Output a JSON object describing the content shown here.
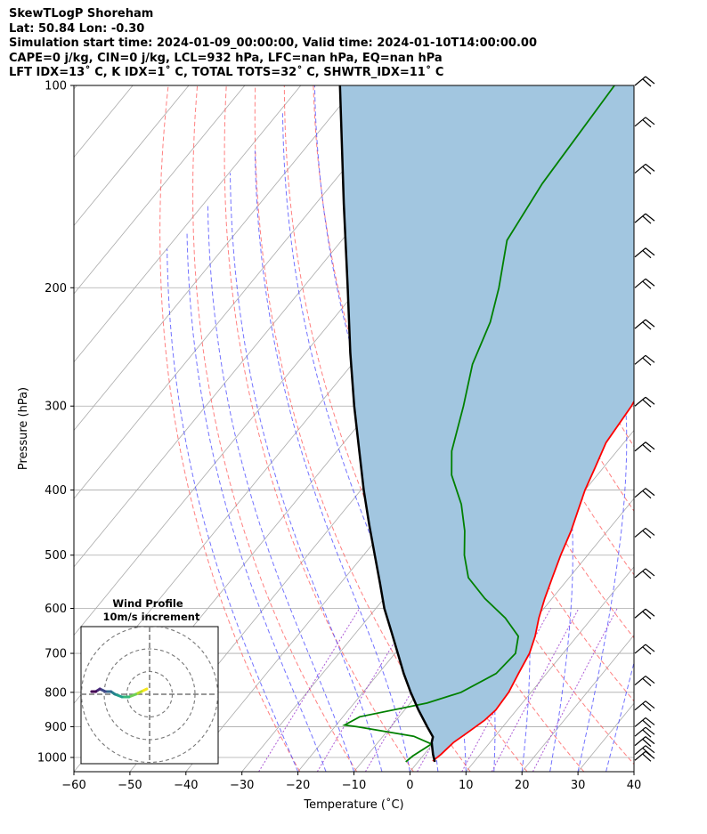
{
  "header": {
    "title": "SkewTLogP Shoreham",
    "location": "Lat: 50.84   Lon: -0.30",
    "times": "Simulation start time: 2024-01-09_00:00:00, Valid time: 2024-01-10T14:00:00.00",
    "params": "CAPE=0 j/kg, CIN=0 j/kg, LCL=932 hPa, LFC=nan hPa, EQ=nan hPa",
    "indices": "LFT IDX=13˚ C, K IDX=1˚ C, TOTAL TOTS=32˚ C, SHWTR_IDX=11˚ C"
  },
  "hodograph": {
    "title": "Wind Profile",
    "subtitle": "10m/s increment"
  },
  "colors": {
    "temperature": "#ff0000",
    "dewpoint": "#008000",
    "parcel": "#000000",
    "shade": "#a2c6e0",
    "dry_adiabat": "#ff5555",
    "moist_adiabat": "#4444ff",
    "mixing_ratio": "#9933cc",
    "isotherm": "#aaaaaa"
  },
  "chart_data": {
    "type": "skewt",
    "xlabel": "Temperature ($^\\circ$C)",
    "ylabel": "Pressure (hPa)",
    "xlim": [
      -60,
      40
    ],
    "ylim": [
      1050,
      100
    ],
    "xticks": [
      "−60",
      "−50",
      "−40",
      "−30",
      "−20",
      "−10",
      "0",
      "10",
      "20",
      "30",
      "40"
    ],
    "x_tick_values": [
      -60,
      -50,
      -40,
      -30,
      -20,
      -10,
      0,
      10,
      20,
      30,
      40
    ],
    "y_tick_values": [
      100,
      200,
      300,
      400,
      500,
      600,
      700,
      800,
      900,
      1000
    ],
    "yticks": [
      "100",
      "200",
      "300",
      "400",
      "500",
      "600",
      "700",
      "800",
      "900",
      "1000"
    ],
    "grid": true,
    "series": [
      {
        "key": "temperature",
        "points": [
          [
            1012,
            2.5
          ],
          [
            990,
            3.0
          ],
          [
            950,
            3.5
          ],
          [
            920,
            4.5
          ],
          [
            880,
            5.8
          ],
          [
            850,
            6.3
          ],
          [
            800,
            6.0
          ],
          [
            750,
            5.0
          ],
          [
            700,
            4.0
          ],
          [
            660,
            2.5
          ],
          [
            620,
            0.5
          ],
          [
            580,
            -1.3
          ],
          [
            540,
            -3.0
          ],
          [
            500,
            -4.8
          ],
          [
            460,
            -6.5
          ],
          [
            430,
            -8.2
          ],
          [
            400,
            -10.0
          ],
          [
            370,
            -11.5
          ],
          [
            340,
            -13.2
          ],
          [
            300,
            -14.0
          ],
          [
            270,
            -15.5
          ],
          [
            250,
            -18.0
          ],
          [
            230,
            -20.5
          ],
          [
            210,
            -24.0
          ],
          [
            190,
            -28.5
          ],
          [
            170,
            -33.0
          ],
          [
            150,
            -37.0
          ],
          [
            130,
            -41.5
          ],
          [
            115,
            -45.0
          ],
          [
            100,
            -49.0
          ]
        ]
      },
      {
        "key": "dewpoint",
        "points": [
          [
            1015,
            -2.2
          ],
          [
            995,
            -1.8
          ],
          [
            955,
            -0.2
          ],
          [
            930,
            -4.5
          ],
          [
            900,
            -16.0
          ],
          [
            895,
            -18.5
          ],
          [
            870,
            -17.0
          ],
          [
            830,
            -7.0
          ],
          [
            800,
            -2.5
          ],
          [
            750,
            1.0
          ],
          [
            700,
            1.5
          ],
          [
            660,
            -0.5
          ],
          [
            620,
            -5.5
          ],
          [
            580,
            -12.0
          ],
          [
            540,
            -18.0
          ],
          [
            500,
            -22.0
          ],
          [
            460,
            -25.5
          ],
          [
            420,
            -30.0
          ],
          [
            380,
            -36.0
          ],
          [
            350,
            -39.5
          ],
          [
            300,
            -44.0
          ],
          [
            260,
            -48.5
          ],
          [
            225,
            -51.5
          ],
          [
            200,
            -55.0
          ],
          [
            170,
            -60.5
          ],
          [
            140,
            -62.5
          ],
          [
            100,
            -64.0
          ]
        ]
      },
      {
        "key": "parcel",
        "points": [
          [
            1015,
            3.0
          ],
          [
            990,
            1.6
          ],
          [
            950,
            -0.4
          ],
          [
            932,
            -1.0
          ],
          [
            900,
            -3.5
          ],
          [
            850,
            -7.5
          ],
          [
            800,
            -11.5
          ],
          [
            750,
            -15.5
          ],
          [
            700,
            -19.5
          ],
          [
            650,
            -23.8
          ],
          [
            600,
            -28.5
          ],
          [
            550,
            -33.0
          ],
          [
            500,
            -38.0
          ],
          [
            450,
            -43.5
          ],
          [
            400,
            -49.5
          ],
          [
            350,
            -56.0
          ],
          [
            300,
            -63.5
          ],
          [
            250,
            -72.0
          ],
          [
            200,
            -82.0
          ],
          [
            150,
            -95.0
          ],
          [
            100,
            -113.0
          ]
        ]
      }
    ],
    "wind_barbs": [
      {
        "p": 100
      },
      {
        "p": 115
      },
      {
        "p": 135
      },
      {
        "p": 160
      },
      {
        "p": 180
      },
      {
        "p": 200
      },
      {
        "p": 230
      },
      {
        "p": 260
      },
      {
        "p": 300
      },
      {
        "p": 350
      },
      {
        "p": 410
      },
      {
        "p": 470
      },
      {
        "p": 540
      },
      {
        "p": 620
      },
      {
        "p": 700
      },
      {
        "p": 780
      },
      {
        "p": 850
      },
      {
        "p": 900
      },
      {
        "p": 930
      },
      {
        "p": 960
      },
      {
        "p": 990
      },
      {
        "p": 1010
      }
    ],
    "hodograph_rings_ms": [
      10,
      20,
      30
    ],
    "hodograph_trace": [
      [
        -2,
        -2
      ],
      [
        -6,
        -1
      ],
      [
        -10,
        0
      ],
      [
        -15,
        1
      ],
      [
        -20,
        1
      ],
      [
        -25,
        0
      ],
      [
        -28,
        -1
      ],
      [
        -32,
        -1
      ],
      [
        -36,
        -2
      ],
      [
        -39,
        -1
      ],
      [
        -42,
        -1
      ]
    ]
  }
}
